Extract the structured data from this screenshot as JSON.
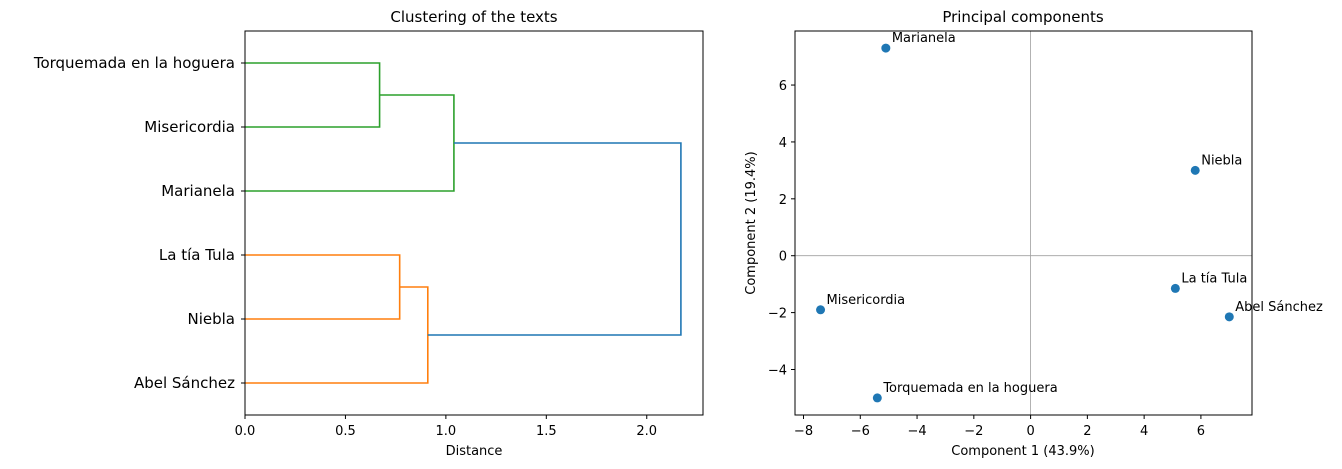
{
  "chart_data": [
    {
      "type": "dendrogram",
      "title": "Clustering of the texts",
      "xlabel": "Distance",
      "ylabel": "",
      "xlim": [
        0,
        2.28
      ],
      "x_ticks": [
        "0.0",
        "0.5",
        "1.0",
        "1.5",
        "2.0"
      ],
      "x_tick_values": [
        0.0,
        0.5,
        1.0,
        1.5,
        2.0
      ],
      "leaves": [
        "Torquemada en la hoguera",
        "Misericordia",
        "Marianela",
        "La tía Tula",
        "Niebla",
        "Abel Sánchez"
      ],
      "merges": [
        {
          "left": "Torquemada en la hoguera",
          "right": "Misericordia",
          "distance": 0.67,
          "color": "#2ca02c"
        },
        {
          "left": "(Torquemada en la hoguera, Misericordia)",
          "right": "Marianela",
          "distance": 1.04,
          "color": "#2ca02c"
        },
        {
          "left": "La tía Tula",
          "right": "Niebla",
          "distance": 0.77,
          "color": "#ff7f0e"
        },
        {
          "left": "(La tía Tula, Niebla)",
          "right": "Abel Sánchez",
          "distance": 0.91,
          "color": "#ff7f0e"
        },
        {
          "left": "green cluster",
          "right": "orange cluster",
          "distance": 2.17,
          "color": "#1f77b4"
        }
      ],
      "colors": {
        "cluster_1": "#2ca02c",
        "cluster_2": "#ff7f0e",
        "root": "#1f77b4"
      }
    },
    {
      "type": "scatter",
      "title": "Principal components",
      "xlabel": "Component 1 (43.9%)",
      "ylabel": "Component 2 (19.4%)",
      "xlim": [
        -8.3,
        7.8
      ],
      "ylim": [
        -5.6,
        7.9
      ],
      "x_ticks": [
        "−8",
        "−6",
        "−4",
        "−2",
        "0",
        "2",
        "4",
        "6"
      ],
      "x_tick_values": [
        -8,
        -6,
        -4,
        -2,
        0,
        2,
        4,
        6
      ],
      "y_ticks": [
        "−4",
        "−2",
        "0",
        "2",
        "4",
        "6"
      ],
      "y_tick_values": [
        -4,
        -2,
        0,
        2,
        4,
        6
      ],
      "reference_lines": {
        "x": 0,
        "y": 0,
        "color": "#a0a0a0"
      },
      "point_color": "#1f77b4",
      "points": [
        {
          "label": "Marianela",
          "x": -5.1,
          "y": 7.3
        },
        {
          "label": "Niebla",
          "x": 5.8,
          "y": 3.0
        },
        {
          "label": "La tía Tula",
          "x": 5.1,
          "y": -1.15
        },
        {
          "label": "Abel Sánchez",
          "x": 7.0,
          "y": -2.15
        },
        {
          "label": "Misericordia",
          "x": -7.4,
          "y": -1.9
        },
        {
          "label": "Torquemada en la hoguera",
          "x": -5.4,
          "y": -5.0
        }
      ]
    }
  ]
}
